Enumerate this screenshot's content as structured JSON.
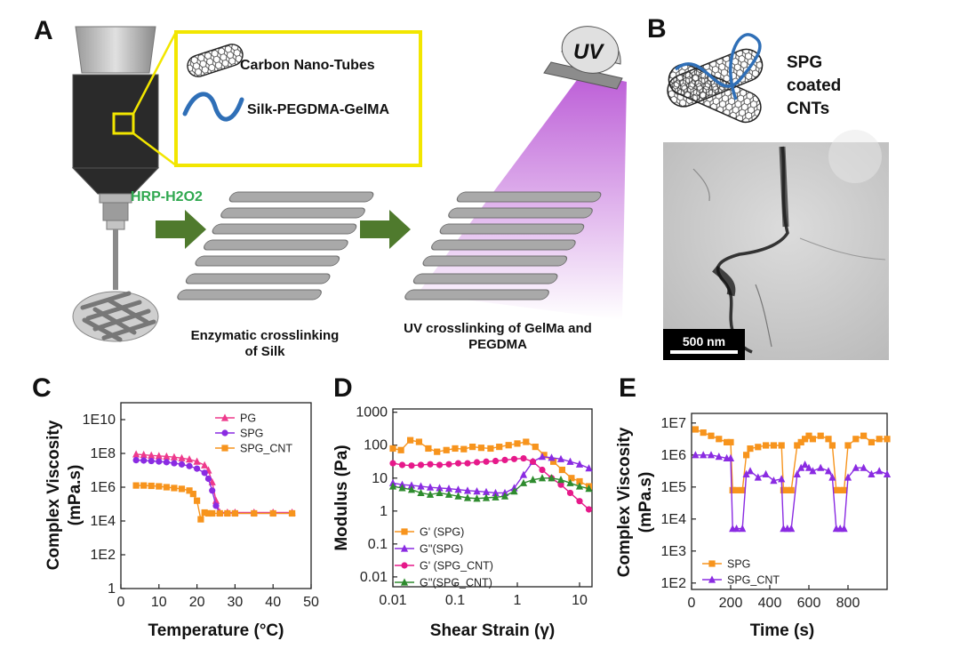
{
  "panel_labels": {
    "a": "A",
    "b": "B",
    "c": "C",
    "d": "D",
    "e": "E"
  },
  "schematic": {
    "legend_cnt": "Carbon Nano-Tubes",
    "legend_silk": "Silk-PEGDMA-GelMA",
    "hrp_label": "HRP-H2O2",
    "uv_label": "UV",
    "caption_enzymatic_1": "Enzymatic crosslinking",
    "caption_enzymatic_2": "of Silk",
    "caption_uv_1": "UV crosslinking of GelMa and",
    "caption_uv_2": "PEGDMA",
    "colors": {
      "highlight": "#f2e600",
      "arrow": "#4f7a2d",
      "hrp": "#2fa84f",
      "uv_glow": "#b040d0",
      "silk": "#2f6fb7"
    },
    "icons": [
      "syringe-icon",
      "nanotube-icon",
      "polymer-chain-icon",
      "scaffold-icon",
      "uv-lamp-icon",
      "arrow-icon"
    ]
  },
  "panel_b": {
    "title_1": "SPG",
    "title_2": "coated",
    "title_3": "CNTs",
    "scale_bar": "500 nm",
    "image_kind": "TEM micrograph"
  },
  "chart_data": [
    {
      "id": "C",
      "type": "scatter",
      "title": "",
      "xlabel": "Temperature (°C)",
      "ylabel_1": "Complex Viscosity",
      "ylabel_2": "(mPa.s)",
      "xscale": "linear",
      "yscale": "log",
      "xlim": [
        0,
        50
      ],
      "ylim_log10": [
        0,
        11
      ],
      "xticks": [
        0,
        10,
        20,
        30,
        40,
        50
      ],
      "xtick_labels": [
        "0",
        "10",
        "20",
        "30",
        "40",
        "50"
      ],
      "yticks_log10": [
        0,
        2,
        4,
        6,
        8,
        10
      ],
      "ytick_labels": [
        "1",
        "1E2",
        "1E4",
        "1E6",
        "1E8",
        "1E10"
      ],
      "legend_position": "top-right",
      "series": [
        {
          "name": "PG",
          "color": "#ee3a8c",
          "marker": "triangle",
          "x": [
            4,
            6,
            8,
            10,
            12,
            14,
            16,
            18,
            20,
            22,
            23,
            24,
            25,
            26,
            28,
            30,
            35,
            40,
            45
          ],
          "y_log10": [
            7.95,
            7.92,
            7.88,
            7.85,
            7.82,
            7.78,
            7.72,
            7.65,
            7.52,
            7.3,
            7.0,
            6.3,
            5.2,
            4.5,
            4.5,
            4.5,
            4.5,
            4.5,
            4.5
          ]
        },
        {
          "name": "SPG",
          "color": "#8a2be2",
          "marker": "circle",
          "x": [
            4,
            6,
            8,
            10,
            12,
            14,
            16,
            18,
            20,
            22,
            23,
            24,
            25,
            26,
            28,
            30,
            35,
            40,
            45
          ],
          "y_log10": [
            7.6,
            7.58,
            7.55,
            7.52,
            7.48,
            7.42,
            7.35,
            7.25,
            7.1,
            6.85,
            6.5,
            5.8,
            4.9,
            4.45,
            4.45,
            4.45,
            4.45,
            4.45,
            4.45
          ]
        },
        {
          "name": "SPG_CNT",
          "color": "#f7941d",
          "marker": "square",
          "x": [
            4,
            6,
            8,
            10,
            12,
            14,
            16,
            18,
            19,
            20,
            21,
            22,
            23,
            24,
            26,
            28,
            30,
            35,
            40,
            45
          ],
          "y_log10": [
            6.1,
            6.1,
            6.08,
            6.05,
            6.0,
            5.95,
            5.9,
            5.8,
            5.6,
            5.2,
            4.1,
            4.5,
            4.45,
            4.45,
            4.45,
            4.45,
            4.45,
            4.45,
            4.45,
            4.45
          ]
        }
      ]
    },
    {
      "id": "D",
      "type": "scatter",
      "title": "",
      "xlabel": "Shear Strain (γ)",
      "ylabel": "Modulus (Pa)",
      "xscale": "log",
      "yscale": "log",
      "xlim_log10": [
        -2,
        1.2
      ],
      "ylim_log10": [
        -2.3,
        3.1
      ],
      "xticks_log10": [
        -2,
        -1,
        0,
        1
      ],
      "xtick_labels": [
        "0.01",
        "0.1",
        "1",
        "10"
      ],
      "yticks_log10": [
        -2,
        -1,
        0,
        1,
        2,
        3
      ],
      "ytick_labels": [
        "0.01",
        "0.1",
        "1",
        "10",
        "100",
        "1000"
      ],
      "legend_position": "bottom-left",
      "series": [
        {
          "name": "G' (SPG)",
          "color": "#f7941d",
          "marker": "square",
          "x_log10": [
            -2.0,
            -1.87,
            -1.72,
            -1.58,
            -1.43,
            -1.29,
            -1.14,
            -1.0,
            -0.86,
            -0.72,
            -0.58,
            -0.43,
            -0.29,
            -0.14,
            0.0,
            0.14,
            0.29,
            0.43,
            0.58,
            0.72,
            0.87,
            1.0,
            1.15
          ],
          "y_log10": [
            1.9,
            1.85,
            2.15,
            2.1,
            1.9,
            1.8,
            1.85,
            1.9,
            1.88,
            1.95,
            1.92,
            1.9,
            1.95,
            2.0,
            2.05,
            2.1,
            1.95,
            1.7,
            1.5,
            1.25,
            1.0,
            0.9,
            0.75
          ]
        },
        {
          "name": "G''(SPG)",
          "color": "#8a2be2",
          "marker": "triangle",
          "x_log10": [
            -2.0,
            -1.85,
            -1.7,
            -1.55,
            -1.4,
            -1.25,
            -1.1,
            -0.95,
            -0.8,
            -0.65,
            -0.5,
            -0.35,
            -0.2,
            -0.05,
            0.1,
            0.25,
            0.4,
            0.55,
            0.7,
            0.85,
            1.0,
            1.15
          ],
          "y_log10": [
            0.85,
            0.8,
            0.78,
            0.75,
            0.72,
            0.7,
            0.68,
            0.65,
            0.62,
            0.6,
            0.58,
            0.55,
            0.55,
            0.7,
            1.1,
            1.5,
            1.65,
            1.62,
            1.58,
            1.5,
            1.42,
            1.3
          ]
        },
        {
          "name": "G' (SPG_CNT)",
          "color": "#e6198a",
          "marker": "circle",
          "x_log10": [
            -2.0,
            -1.85,
            -1.7,
            -1.55,
            -1.4,
            -1.25,
            -1.1,
            -0.95,
            -0.8,
            -0.65,
            -0.5,
            -0.35,
            -0.2,
            -0.05,
            0.1,
            0.25,
            0.4,
            0.55,
            0.7,
            0.85,
            1.0,
            1.15
          ],
          "y_log10": [
            1.45,
            1.4,
            1.38,
            1.4,
            1.42,
            1.4,
            1.42,
            1.45,
            1.45,
            1.48,
            1.5,
            1.52,
            1.55,
            1.58,
            1.6,
            1.5,
            1.25,
            1.0,
            0.8,
            0.55,
            0.3,
            0.05
          ]
        },
        {
          "name": "G''(SPG_CNT)",
          "color": "#2e8b2e",
          "marker": "triangle",
          "x_log10": [
            -2.0,
            -1.85,
            -1.7,
            -1.55,
            -1.4,
            -1.25,
            -1.1,
            -0.95,
            -0.8,
            -0.65,
            -0.5,
            -0.35,
            -0.2,
            -0.05,
            0.1,
            0.25,
            0.4,
            0.55,
            0.7,
            0.85,
            1.0,
            1.15
          ],
          "y_log10": [
            0.75,
            0.7,
            0.65,
            0.55,
            0.5,
            0.55,
            0.5,
            0.45,
            0.4,
            0.38,
            0.4,
            0.42,
            0.45,
            0.6,
            0.85,
            0.95,
            1.0,
            1.0,
            0.95,
            0.85,
            0.75,
            0.68
          ]
        }
      ]
    },
    {
      "id": "E",
      "type": "line",
      "title": "",
      "xlabel": "Time (s)",
      "ylabel_1": "Complex Viscosity",
      "ylabel_2": "(mPa.s)",
      "xscale": "linear",
      "yscale": "log",
      "xlim": [
        0,
        1000
      ],
      "ylim_log10": [
        1.8,
        7.3
      ],
      "xticks": [
        0,
        200,
        400,
        600,
        800
      ],
      "xtick_labels": [
        "0",
        "200",
        "400",
        "600",
        "800"
      ],
      "yticks_log10": [
        2,
        3,
        4,
        5,
        6,
        7
      ],
      "ytick_labels": [
        "1E2",
        "1E3",
        "1E4",
        "1E5",
        "1E6",
        "1E7"
      ],
      "legend_position": "bottom-left",
      "series": [
        {
          "name": "SPG",
          "color": "#f7941d",
          "marker": "square",
          "x": [
            20,
            60,
            100,
            140,
            180,
            200,
            210,
            230,
            260,
            280,
            300,
            340,
            380,
            420,
            460,
            470,
            490,
            510,
            540,
            560,
            580,
            600,
            620,
            660,
            700,
            720,
            740,
            760,
            780,
            800,
            840,
            880,
            920,
            960,
            1000
          ],
          "y_log10": [
            6.8,
            6.7,
            6.6,
            6.5,
            6.4,
            6.4,
            4.9,
            4.9,
            4.9,
            6.0,
            6.2,
            6.25,
            6.3,
            6.3,
            6.3,
            4.9,
            4.9,
            4.9,
            6.3,
            6.4,
            6.5,
            6.6,
            6.5,
            6.6,
            6.5,
            6.3,
            4.9,
            4.9,
            4.9,
            6.3,
            6.5,
            6.6,
            6.4,
            6.5,
            6.5
          ]
        },
        {
          "name": "SPG_CNT",
          "color": "#8a2be2",
          "marker": "triangle",
          "x": [
            20,
            60,
            100,
            140,
            180,
            200,
            210,
            230,
            260,
            280,
            300,
            340,
            380,
            420,
            460,
            470,
            490,
            510,
            540,
            560,
            580,
            600,
            620,
            660,
            700,
            720,
            740,
            760,
            780,
            800,
            840,
            880,
            920,
            960,
            1000
          ],
          "y_log10": [
            6.0,
            6.0,
            6.0,
            5.95,
            5.9,
            5.9,
            3.7,
            3.7,
            3.7,
            5.4,
            5.5,
            5.3,
            5.4,
            5.2,
            5.25,
            3.7,
            3.7,
            3.7,
            5.4,
            5.6,
            5.7,
            5.6,
            5.5,
            5.6,
            5.5,
            5.3,
            3.7,
            3.7,
            3.7,
            5.3,
            5.6,
            5.6,
            5.4,
            5.5,
            5.4
          ]
        }
      ]
    }
  ]
}
